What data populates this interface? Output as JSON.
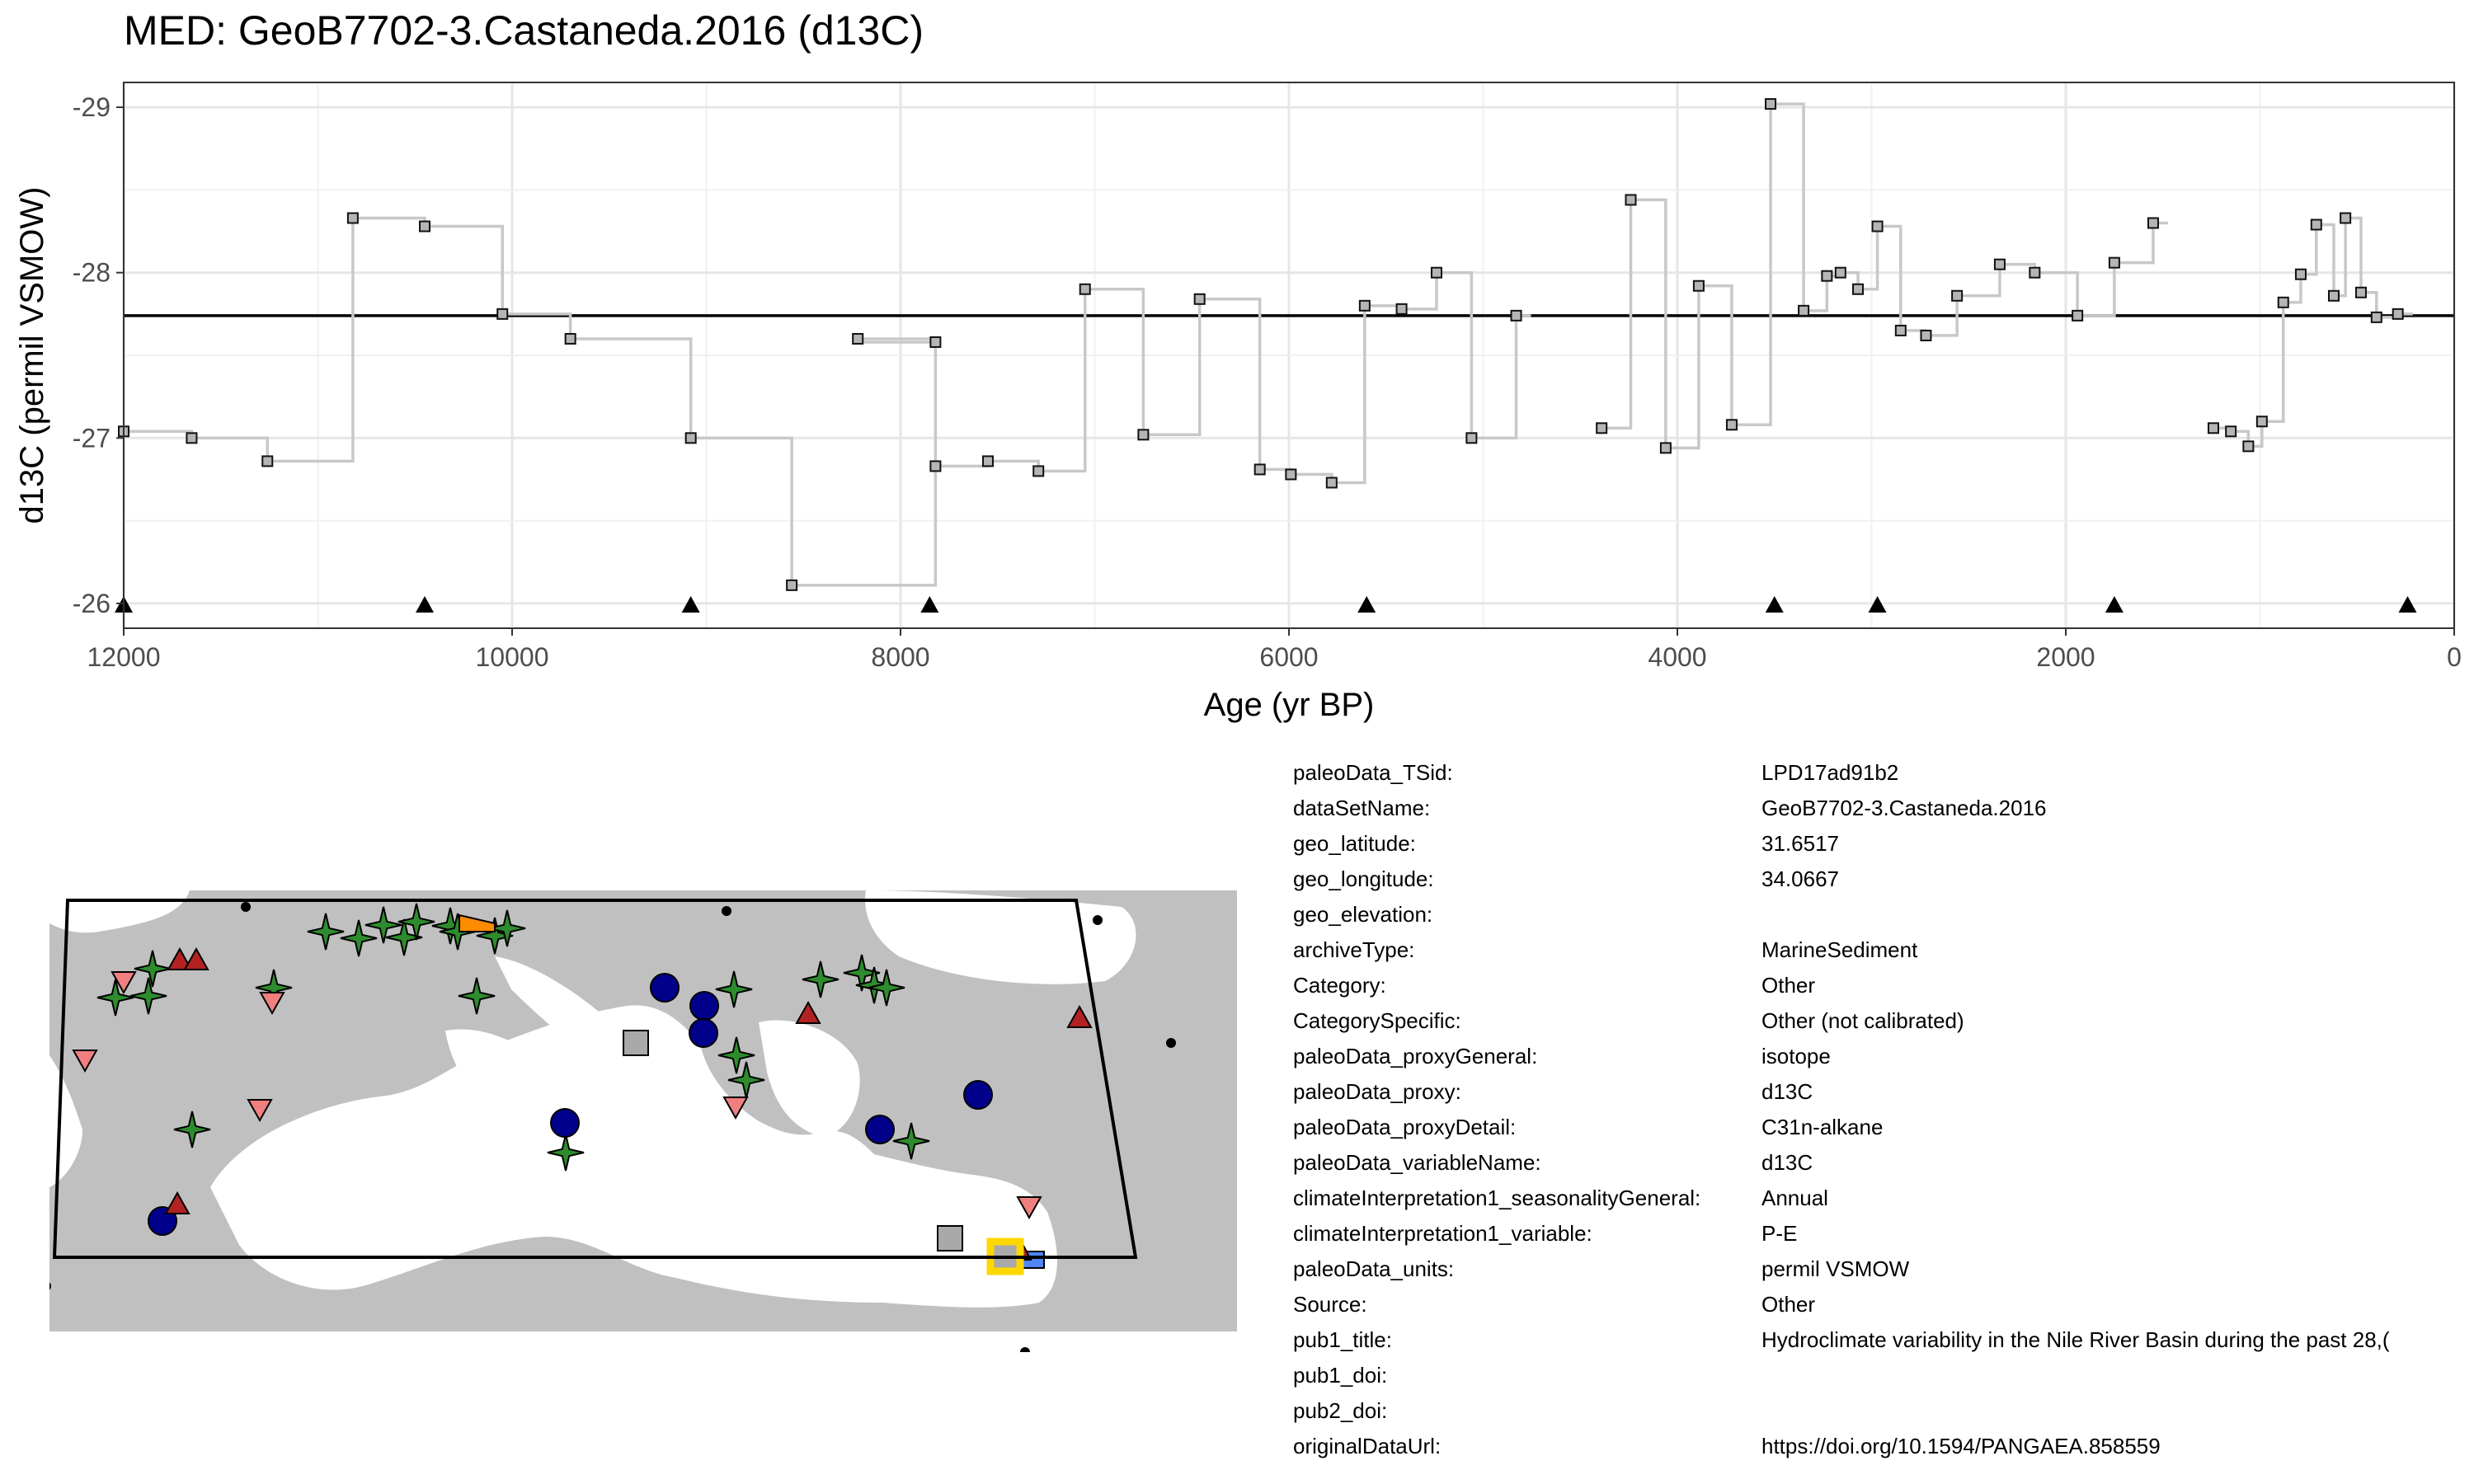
{
  "title": "MED: GeoB7702-3.Castaneda.2016 (d13C)",
  "chart_data": {
    "type": "line",
    "xlabel": "Age (yr BP)",
    "ylabel": "d13C (permil VSMOW)",
    "x_reversed": true,
    "y_reversed": true,
    "xlim": [
      12000,
      0
    ],
    "ylim": [
      -25.85,
      -29.15
    ],
    "x_ticks": [
      12000,
      10000,
      8000,
      6000,
      4000,
      2000,
      0
    ],
    "y_ticks": [
      -26,
      -27,
      -28,
      -29
    ],
    "grid": true,
    "mean_line": -27.74,
    "step_style": "hv",
    "line_color": "#c8c8c8",
    "point_fill": "#b5b5b5",
    "segments": [
      [
        {
          "x": 12000,
          "y": -27.04
        },
        {
          "x": 11650,
          "y": -27.0
        },
        {
          "x": 11260,
          "y": -26.86
        },
        {
          "x": 10820,
          "y": -28.33
        },
        {
          "x": 10450,
          "y": -28.28
        },
        {
          "x": 10050,
          "y": -27.75
        },
        {
          "x": 9700,
          "y": -27.6
        },
        {
          "x": 9080,
          "y": -27.0
        },
        {
          "x": 8560,
          "y": -26.11
        },
        {
          "x": 7820,
          "y": -27.58
        },
        {
          "x": 8220,
          "y": -27.6
        },
        {
          "x": 7820,
          "y": -26.83
        },
        {
          "x": 7550,
          "y": -26.86
        },
        {
          "x": 7290,
          "y": -26.8
        },
        {
          "x": 7050,
          "y": -27.9
        },
        {
          "x": 6750,
          "y": -27.02
        },
        {
          "x": 6460,
          "y": -27.84
        },
        {
          "x": 6150,
          "y": -26.81
        },
        {
          "x": 5990,
          "y": -26.78
        },
        {
          "x": 5780,
          "y": -26.73
        },
        {
          "x": 5610,
          "y": -27.8
        },
        {
          "x": 5420,
          "y": -27.78
        },
        {
          "x": 5240,
          "y": -28.0
        },
        {
          "x": 5060,
          "y": -27.0
        },
        {
          "x": 4830,
          "y": -27.74
        }
      ],
      [
        {
          "x": 4390,
          "y": -27.06
        },
        {
          "x": 4240,
          "y": -28.44
        },
        {
          "x": 4060,
          "y": -26.94
        },
        {
          "x": 3890,
          "y": -27.92
        },
        {
          "x": 3720,
          "y": -27.08
        },
        {
          "x": 3520,
          "y": -29.02
        },
        {
          "x": 3350,
          "y": -27.77
        },
        {
          "x": 3230,
          "y": -27.98
        },
        {
          "x": 3160,
          "y": -28.0
        },
        {
          "x": 3070,
          "y": -27.9
        },
        {
          "x": 2970,
          "y": -28.28
        },
        {
          "x": 2850,
          "y": -27.65
        },
        {
          "x": 2720,
          "y": -27.62
        },
        {
          "x": 2560,
          "y": -27.86
        },
        {
          "x": 2340,
          "y": -28.05
        },
        {
          "x": 2160,
          "y": -28.0
        },
        {
          "x": 1940,
          "y": -27.74
        },
        {
          "x": 1750,
          "y": -28.06
        },
        {
          "x": 1550,
          "y": -28.3
        }
      ],
      [
        {
          "x": 1240,
          "y": -27.06
        },
        {
          "x": 1150,
          "y": -27.04
        },
        {
          "x": 1060,
          "y": -26.95
        },
        {
          "x": 990,
          "y": -27.1
        },
        {
          "x": 880,
          "y": -27.82
        },
        {
          "x": 790,
          "y": -27.99
        },
        {
          "x": 710,
          "y": -28.29
        },
        {
          "x": 620,
          "y": -27.86
        },
        {
          "x": 560,
          "y": -28.33
        },
        {
          "x": 480,
          "y": -27.88
        },
        {
          "x": 400,
          "y": -27.73
        },
        {
          "x": 290,
          "y": -27.75
        }
      ]
    ],
    "chronology_markers_x": [
      12000,
      10450,
      9080,
      7850,
      5600,
      3500,
      2970,
      1750,
      240
    ]
  },
  "map": {
    "land_color": "#c0c0c0",
    "sea_color": "#ffffff",
    "border_color": "#ffffff",
    "colors": {
      "star": "#2e8b2e",
      "circle": "#00008b",
      "triangle_up": "#b22222",
      "triangle_down": "#f08080",
      "square": "#a9a9a9",
      "highlight": "#ffd700",
      "orange": "#ff8c00",
      "blue_square": "#4f86f7"
    }
  },
  "metadata": [
    {
      "key": "paleoData_TSid:",
      "value": "LPD17ad91b2"
    },
    {
      "key": "dataSetName:",
      "value": "GeoB7702-3.Castaneda.2016"
    },
    {
      "key": "geo_latitude:",
      "value": "31.6517"
    },
    {
      "key": "geo_longitude:",
      "value": "34.0667"
    },
    {
      "key": "geo_elevation:",
      "value": ""
    },
    {
      "key": "archiveType:",
      "value": "MarineSediment"
    },
    {
      "key": "Category:",
      "value": "Other"
    },
    {
      "key": "CategorySpecific:",
      "value": "Other (not calibrated)"
    },
    {
      "key": "paleoData_proxyGeneral:",
      "value": "isotope"
    },
    {
      "key": "paleoData_proxy:",
      "value": "d13C"
    },
    {
      "key": "paleoData_proxyDetail:",
      "value": "C31n-alkane"
    },
    {
      "key": "paleoData_variableName:",
      "value": "d13C"
    },
    {
      "key": "climateInterpretation1_seasonalityGeneral:",
      "value": "Annual"
    },
    {
      "key": "climateInterpretation1_variable:",
      "value": "P-E"
    },
    {
      "key": "paleoData_units:",
      "value": "permil VSMOW"
    },
    {
      "key": "Source:",
      "value": "Other"
    },
    {
      "key": "pub1_title:",
      "value": "Hydroclimate variability in the Nile River Basin during the past 28,("
    },
    {
      "key": "pub1_doi:",
      "value": ""
    },
    {
      "key": "pub2_doi:",
      "value": ""
    },
    {
      "key": "originalDataUrl:",
      "value": "https://doi.org/10.1594/PANGAEA.858559"
    }
  ]
}
